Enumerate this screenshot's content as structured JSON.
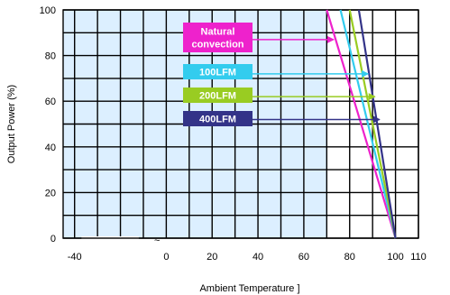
{
  "chart_data": {
    "type": "line",
    "xlabel": "Ambient Temperature  ]",
    "ylabel": "Output Power  (%)",
    "xlim": [
      -45,
      110
    ],
    "ylim": [
      0,
      100
    ],
    "x_ticks": [
      "-40",
      "0",
      "20",
      "40",
      "60",
      "80",
      "100",
      "110"
    ],
    "y_ticks": [
      "0",
      "20",
      "40",
      "60",
      "80",
      "100"
    ],
    "x_tick_values": [
      -40,
      0,
      20,
      40,
      60,
      80,
      100,
      110
    ],
    "y_tick_values": [
      0,
      20,
      40,
      60,
      80,
      100
    ],
    "grid": true,
    "shaded_region": {
      "x": [
        -45,
        70
      ],
      "color": "#dcefff"
    },
    "small_mark": "~",
    "series": [
      {
        "name": "Natural convection",
        "color": "#ee22cc",
        "x": [
          70,
          100
        ],
        "y": [
          100,
          0
        ]
      },
      {
        "name": "100LFM",
        "color": "#33ccee",
        "x": [
          76,
          100
        ],
        "y": [
          100,
          0
        ]
      },
      {
        "name": "200LFM",
        "color": "#99cc22",
        "x": [
          80,
          100
        ],
        "y": [
          100,
          0
        ]
      },
      {
        "name": "400LFM",
        "color": "#333388",
        "x": [
          84,
          100
        ],
        "y": [
          100,
          0
        ]
      }
    ],
    "annotations": [
      {
        "lines": [
          "Natural",
          "convection"
        ],
        "bg": "#ee22cc",
        "arrow_to": [
          73,
          87
        ],
        "arrow_color": "#ee22cc"
      },
      {
        "lines": [
          "100LFM"
        ],
        "bg": "#33ccee",
        "arrow_to": [
          88,
          72
        ],
        "arrow_color": "#33ccee"
      },
      {
        "lines": [
          "200LFM"
        ],
        "bg": "#99cc22",
        "arrow_to": [
          91,
          62
        ],
        "arrow_color": "#99cc22"
      },
      {
        "lines": [
          "400LFM"
        ],
        "bg": "#333388",
        "arrow_to": [
          93,
          52
        ],
        "arrow_color": "#333388"
      }
    ]
  }
}
